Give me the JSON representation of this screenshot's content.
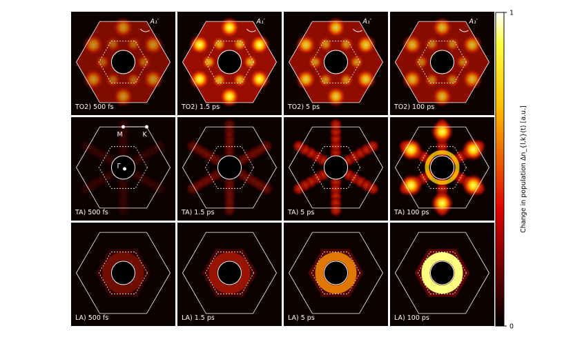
{
  "chart_data": {
    "type": "heatmap-grid",
    "panels": [
      {
        "label": "TO2) 500 fs",
        "marker": "A₁′"
      },
      {
        "label": "TO2) 1.5 ps",
        "marker": "A₁′"
      },
      {
        "label": "TO2) 5 ps",
        "marker": "A₁′"
      },
      {
        "label": "TO2) 100 ps",
        "marker": "A₁′"
      },
      {
        "label": "TA) 500 fs",
        "points": [
          "M",
          "K",
          "Γ"
        ]
      },
      {
        "label": "TA) 1.5 ps"
      },
      {
        "label": "TA) 5 ps"
      },
      {
        "label": "TA) 100 ps"
      },
      {
        "label": "LA) 500 fs"
      },
      {
        "label": "LA) 1.5 ps"
      },
      {
        "label": "LA) 5 ps"
      },
      {
        "label": "LA) 100 ps"
      }
    ],
    "colorbar": {
      "label": "Change in population Δn_{l,k}(t) [a.u.]",
      "lim": [
        0,
        1
      ],
      "ticks": [
        0,
        1
      ]
    }
  }
}
